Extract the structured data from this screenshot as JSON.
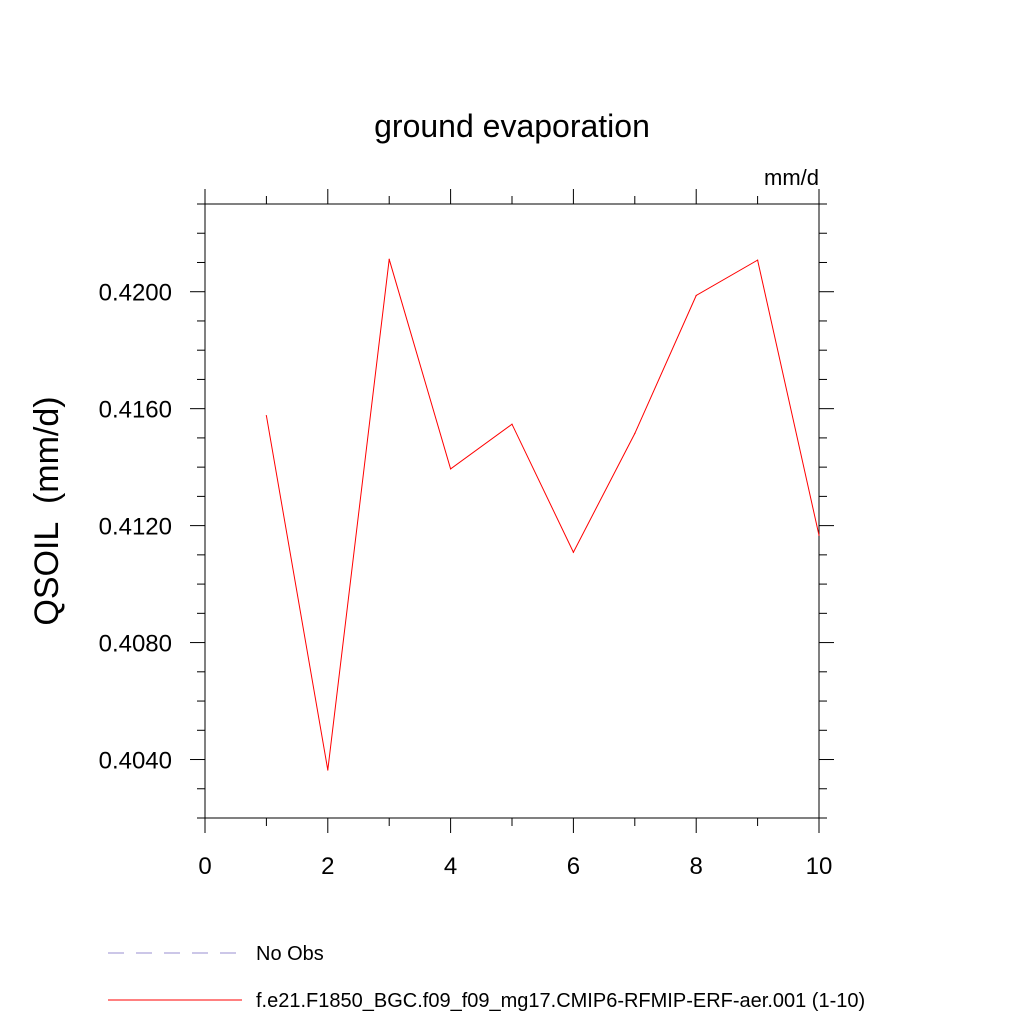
{
  "chart_data": {
    "type": "line",
    "title": "ground evaporation",
    "units_label": "mm/d",
    "ylabel": "QSOIL  (mm/d)",
    "xlabel": "",
    "xlim": [
      0,
      10
    ],
    "ylim": [
      0.402,
      0.423
    ],
    "x_ticks": [
      0,
      2,
      4,
      6,
      8,
      10
    ],
    "x_tick_labels": [
      "0",
      "2",
      "4",
      "6",
      "8",
      "10"
    ],
    "y_ticks": [
      0.404,
      0.408,
      0.412,
      0.416,
      0.42
    ],
    "y_tick_labels": [
      "0.4040",
      "0.4080",
      "0.4120",
      "0.4160",
      "0.4200"
    ],
    "grid": false,
    "legend_position": "bottom",
    "legend": [
      {
        "label": "No Obs",
        "color": "#9a8fd0",
        "style": "dashed"
      },
      {
        "label": "f.e21.F1850_BGC.f09_f09_mg17.CMIP6-RFMIP-ERF-aer.001 (1-10)",
        "color": "#ff0000",
        "style": "solid"
      }
    ],
    "series": [
      {
        "color": "#ff0000",
        "x": [
          1,
          2,
          3,
          4,
          5,
          6,
          7,
          8,
          9,
          10
        ],
        "y": [
          0.41576,
          0.40364,
          0.42111,
          0.41394,
          0.41547,
          0.41109,
          0.41515,
          0.41987,
          0.42108,
          0.41167
        ]
      }
    ]
  }
}
